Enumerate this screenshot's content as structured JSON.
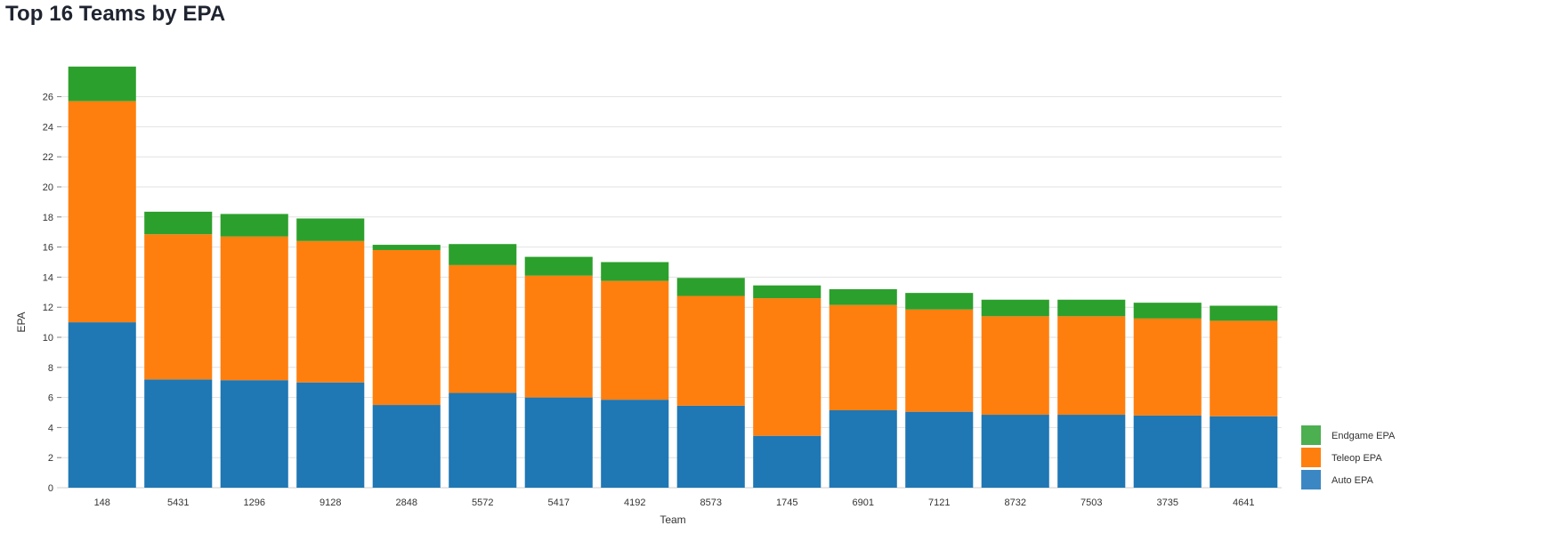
{
  "page": {
    "title": "Top 16 Teams by EPA"
  },
  "chart_data": {
    "type": "bar",
    "stacked": true,
    "title": "Top 16 Teams by EPA",
    "xlabel": "Team",
    "ylabel": "EPA",
    "ylim": [
      0,
      28
    ],
    "yticks": [
      0,
      2,
      4,
      6,
      8,
      10,
      12,
      14,
      16,
      18,
      20,
      22,
      24,
      26
    ],
    "grid": true,
    "legend_position": "bottom-right",
    "categories": [
      "148",
      "5431",
      "1296",
      "9128",
      "2848",
      "5572",
      "5417",
      "4192",
      "8573",
      "1745",
      "6901",
      "7121",
      "8732",
      "7503",
      "3735",
      "4641"
    ],
    "series": [
      {
        "name": "Auto EPA",
        "color": "#1f77b4",
        "values": [
          11.0,
          7.2,
          7.15,
          7.0,
          5.5,
          6.3,
          6.0,
          5.85,
          5.45,
          3.45,
          5.15,
          5.05,
          4.85,
          4.85,
          4.8,
          4.75
        ]
      },
      {
        "name": "Teleop EPA",
        "color": "#ff7f0e",
        "values": [
          14.7,
          9.65,
          9.55,
          9.4,
          10.3,
          8.5,
          8.1,
          7.9,
          7.3,
          9.15,
          7.0,
          6.8,
          6.55,
          6.55,
          6.45,
          6.35
        ]
      },
      {
        "name": "Endgame EPA",
        "color": "#2ca02c",
        "values": [
          2.3,
          1.5,
          1.5,
          1.5,
          0.35,
          1.4,
          1.25,
          1.25,
          1.2,
          0.85,
          1.05,
          1.1,
          1.1,
          1.1,
          1.05,
          1.0
        ]
      }
    ],
    "legend": [
      {
        "name": "Endgame EPA",
        "color": "#4caf50"
      },
      {
        "name": "Teleop EPA",
        "color": "#ff7f0e"
      },
      {
        "name": "Auto EPA",
        "color": "#3b87c4"
      }
    ]
  }
}
